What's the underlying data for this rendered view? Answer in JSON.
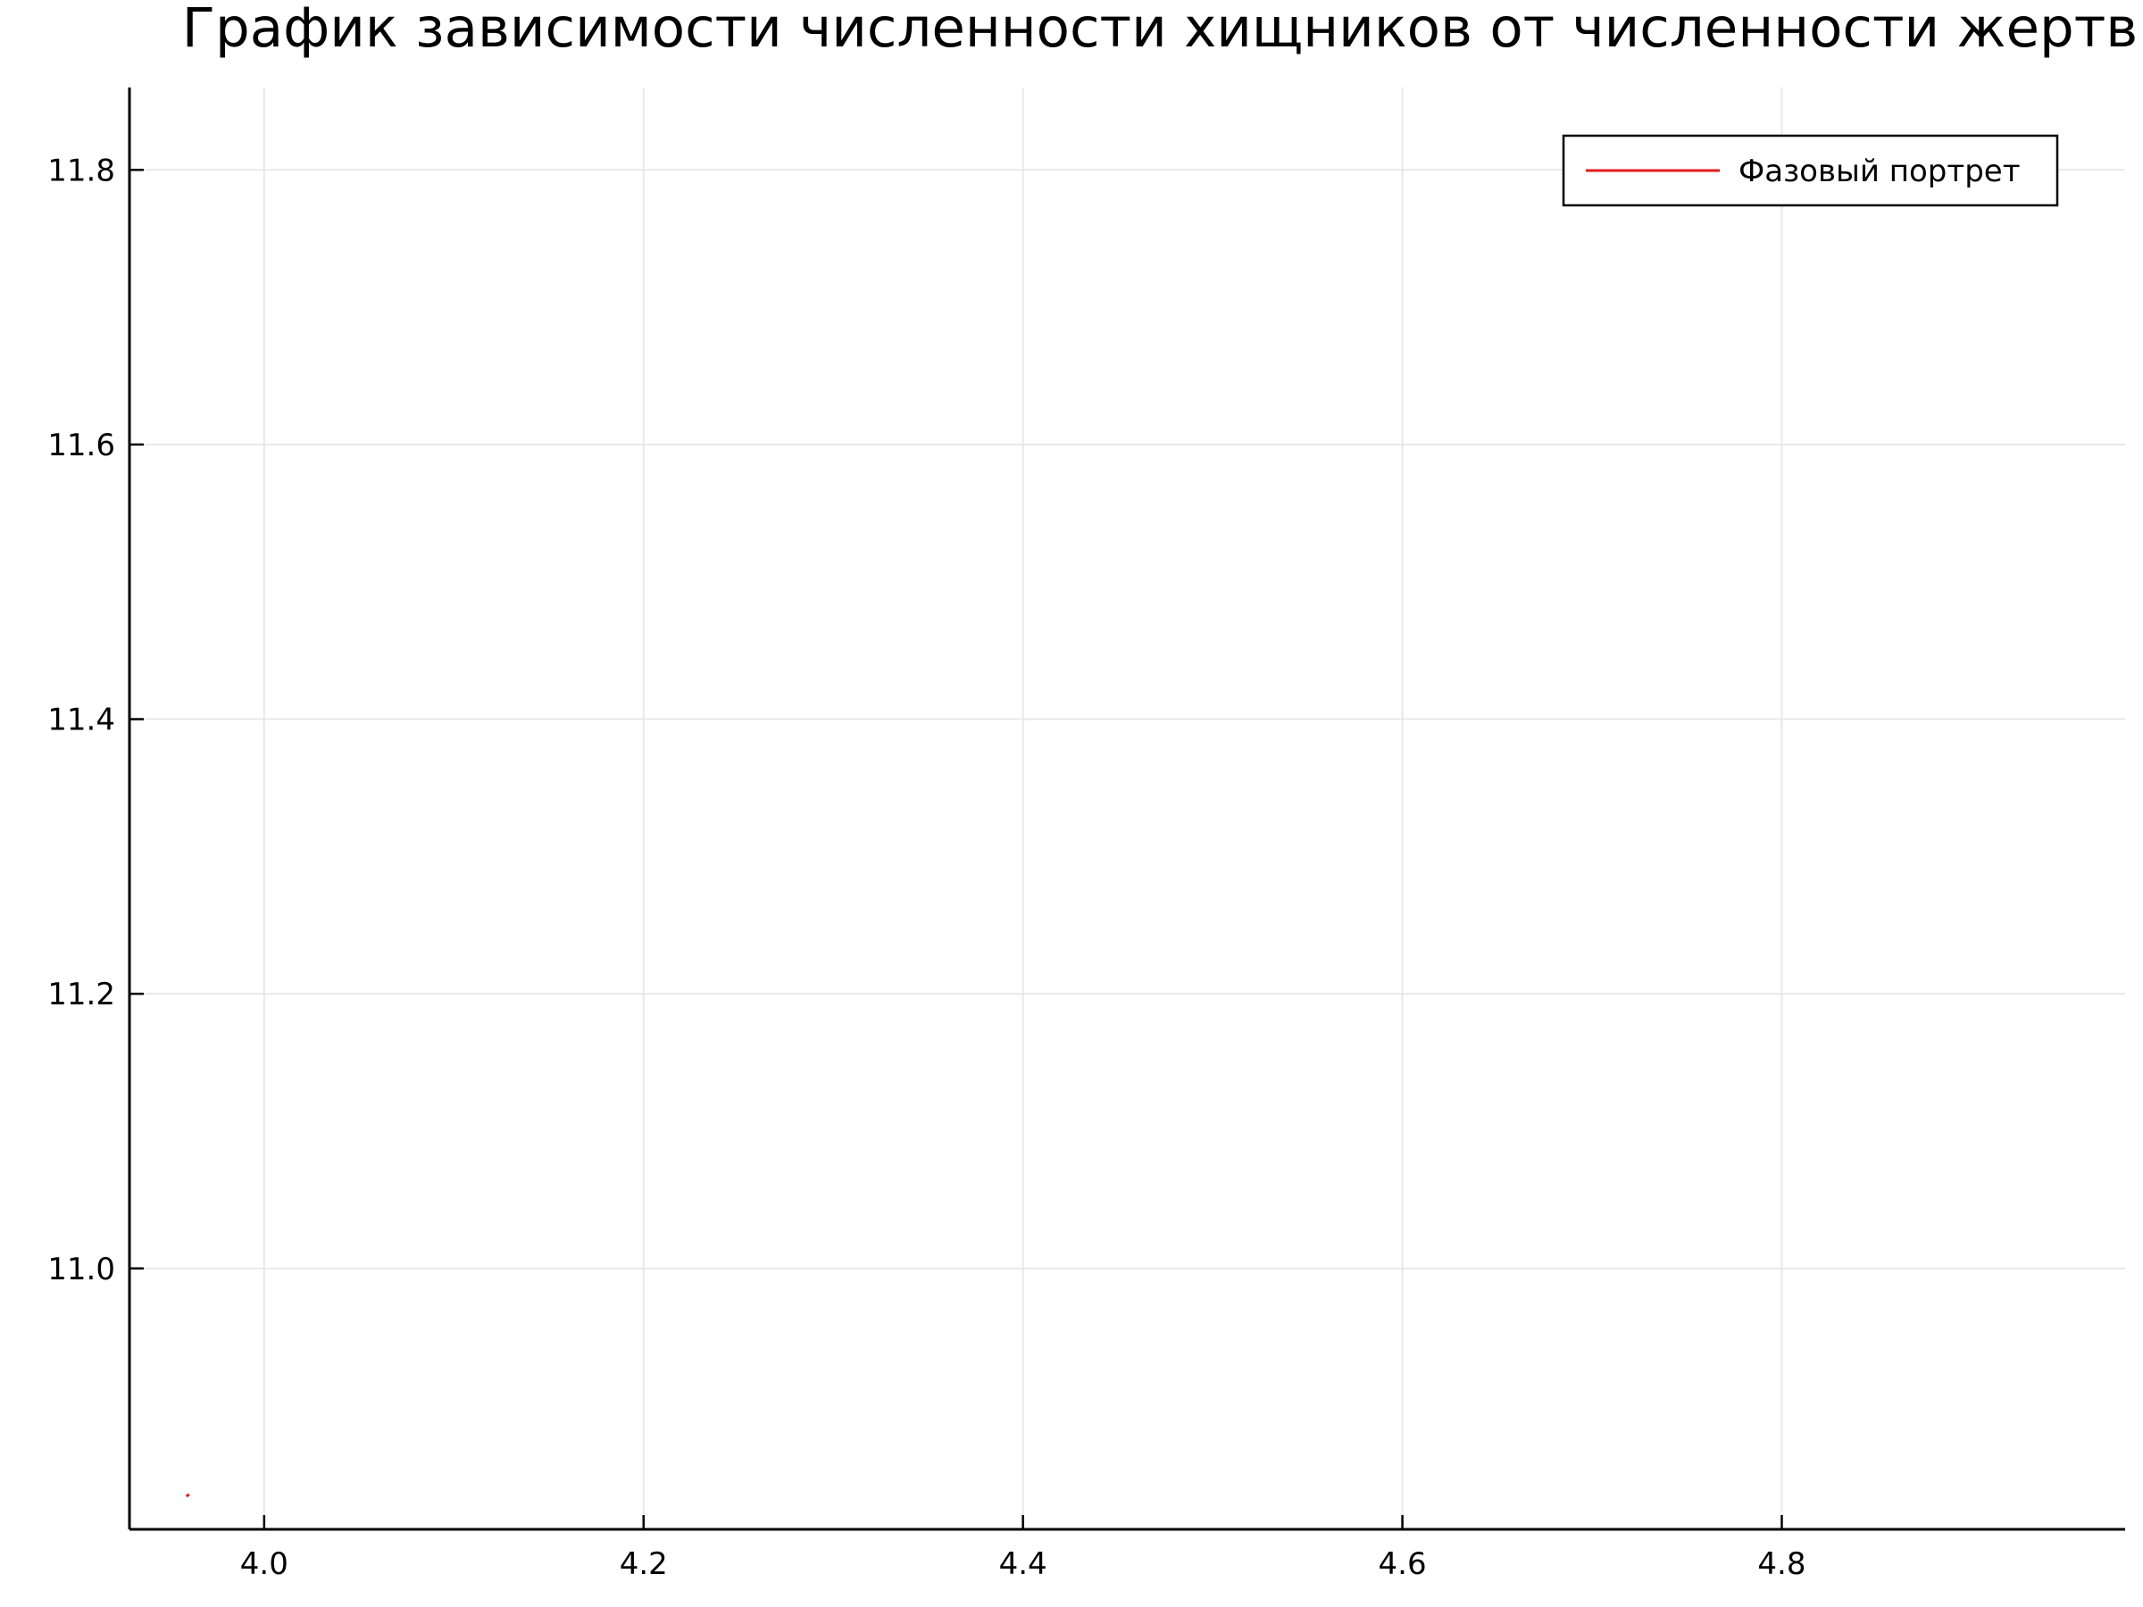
{
  "chart_data": {
    "type": "line",
    "title": "График зависимости численности хищников от численности жертв",
    "xlabel": "",
    "ylabel": "",
    "xlim": [
      3.929,
      4.981
    ],
    "ylim": [
      10.81,
      11.86
    ],
    "x_ticks": [
      4.0,
      4.2,
      4.4,
      4.6,
      4.8
    ],
    "x_tick_labels": [
      "4.0",
      "4.2",
      "4.4",
      "4.6",
      "4.8"
    ],
    "y_ticks": [
      11.0,
      11.2,
      11.4,
      11.6,
      11.8
    ],
    "y_tick_labels": [
      "11.0",
      "11.2",
      "11.4",
      "11.6",
      "11.8"
    ],
    "grid": true,
    "legend_position": "top-right",
    "series": [
      {
        "name": "Фазовый портрет",
        "color": "#e31a1c",
        "x": [
          3.959,
          3.9605
        ],
        "y": [
          10.834,
          10.8355
        ]
      }
    ]
  }
}
